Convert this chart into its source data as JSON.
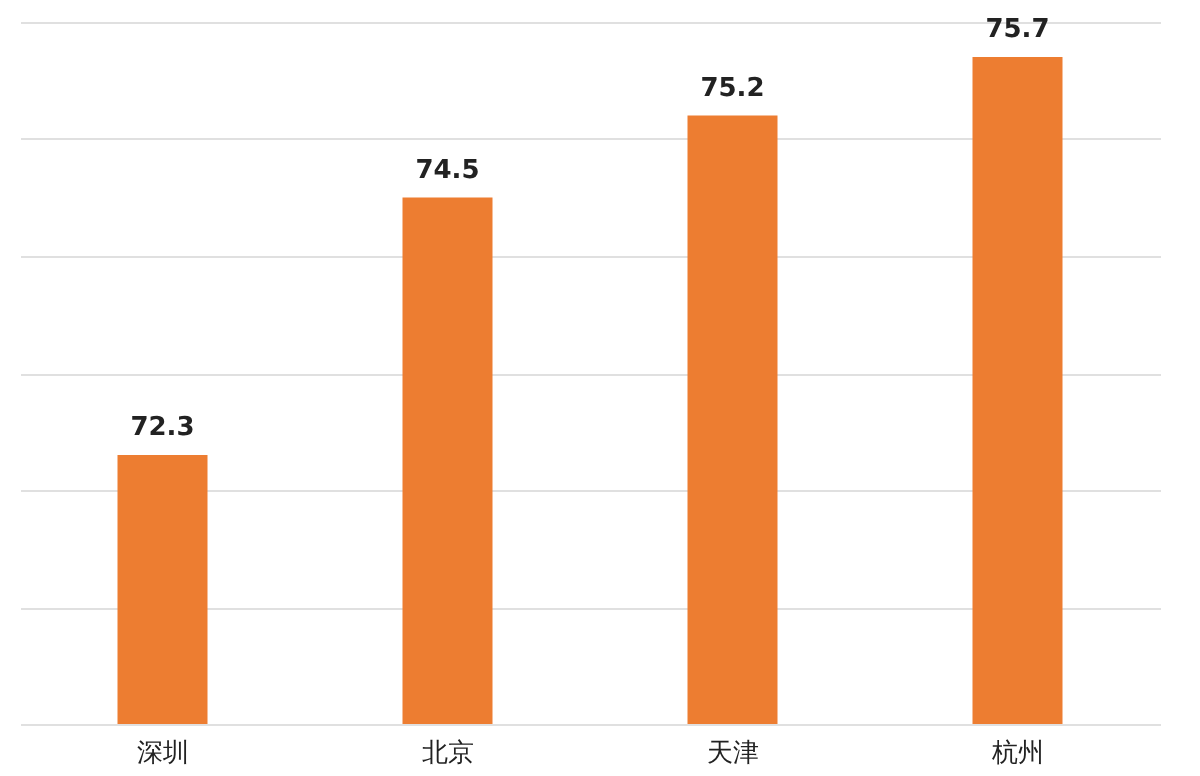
{
  "chart_data": {
    "type": "bar",
    "categories": [
      "深圳",
      "北京",
      "天津",
      "杭州"
    ],
    "values": [
      72.3,
      74.5,
      75.2,
      75.7
    ],
    "color": "#ed7d31",
    "ylim": [
      70,
      76
    ],
    "yticks": [
      {
        "value": 70,
        "label": null
      },
      {
        "value": 71,
        "label": null
      },
      {
        "value": 72,
        "label": null
      },
      {
        "value": 73,
        "label": null
      },
      {
        "value": 74,
        "label": null
      },
      {
        "value": 75,
        "label": null
      },
      {
        "value": 76,
        "label": null
      }
    ],
    "grid": "y",
    "tick_labels": "x",
    "data_labels": true
  }
}
